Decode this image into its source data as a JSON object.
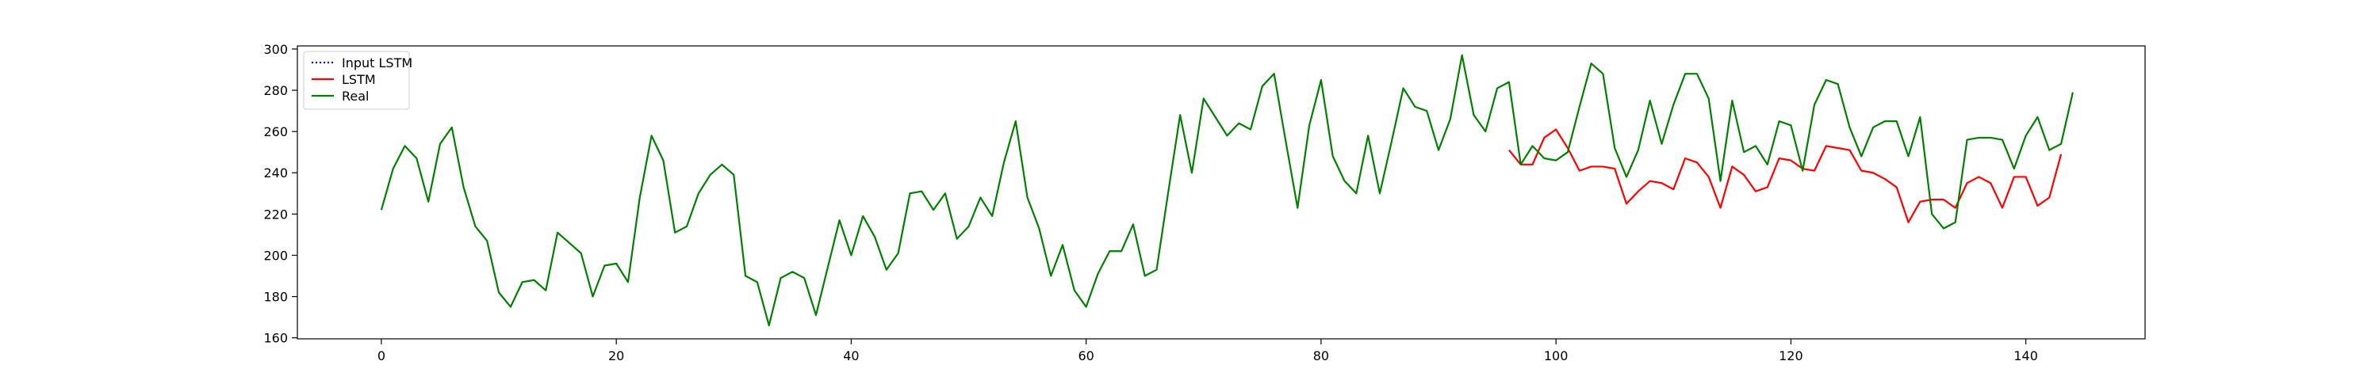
{
  "chart_data": {
    "type": "line",
    "title": "",
    "xlabel": "",
    "ylabel": "",
    "xlim": [
      -7.15,
      150.15
    ],
    "ylim": [
      159.5,
      301.5
    ],
    "xticks": [
      0,
      20,
      40,
      60,
      80,
      100,
      120,
      140
    ],
    "yticks": [
      160,
      180,
      200,
      220,
      240,
      260,
      280,
      300
    ],
    "grid": false,
    "legend_position": "top-left",
    "series": [
      {
        "name": "Input LSTM",
        "color": "#0000ff",
        "style": "dotted",
        "x": [],
        "y": []
      },
      {
        "name": "LSTM",
        "color": "#ff0000",
        "style": "solid",
        "x_start": 96,
        "y": [
          251,
          244,
          244,
          257,
          261,
          252,
          241,
          243,
          243,
          242,
          225,
          231,
          236,
          235,
          232,
          247,
          245,
          238,
          223,
          243,
          239,
          231,
          233,
          247,
          246,
          242,
          241,
          253,
          252,
          251,
          241,
          240,
          237,
          233,
          216,
          226,
          227,
          227,
          223,
          235,
          238,
          235,
          223,
          238,
          238,
          224,
          228,
          249
        ]
      },
      {
        "name": "Real",
        "color": "#008000",
        "style": "solid",
        "x_start": 0,
        "y": [
          222,
          242,
          253,
          247,
          226,
          254,
          262,
          233,
          214,
          207,
          182,
          175,
          187,
          188,
          183,
          211,
          206,
          201,
          180,
          195,
          196,
          187,
          228,
          258,
          246,
          211,
          214,
          230,
          239,
          244,
          239,
          190,
          187,
          166,
          189,
          192,
          189,
          171,
          194,
          217,
          200,
          219,
          209,
          193,
          201,
          230,
          231,
          222,
          230,
          208,
          214,
          228,
          219,
          245,
          265,
          228,
          213,
          190,
          205,
          183,
          175,
          191,
          202,
          202,
          215,
          190,
          193,
          231,
          268,
          240,
          276,
          267,
          258,
          264,
          261,
          282,
          288,
          255,
          223,
          263,
          285,
          248,
          236,
          230,
          258,
          230,
          255,
          281,
          272,
          270,
          251,
          266,
          297,
          268,
          260,
          281,
          284,
          244,
          253,
          247,
          246,
          250,
          272,
          293,
          288,
          252,
          238,
          251,
          275,
          254,
          273,
          288,
          288,
          276,
          236,
          275,
          250,
          253,
          244,
          265,
          263,
          241,
          273,
          285,
          283,
          262,
          248,
          262,
          265,
          265,
          248,
          267,
          220,
          213,
          216,
          256,
          257,
          257,
          256,
          242,
          258,
          267,
          251,
          254,
          279
        ]
      }
    ]
  }
}
